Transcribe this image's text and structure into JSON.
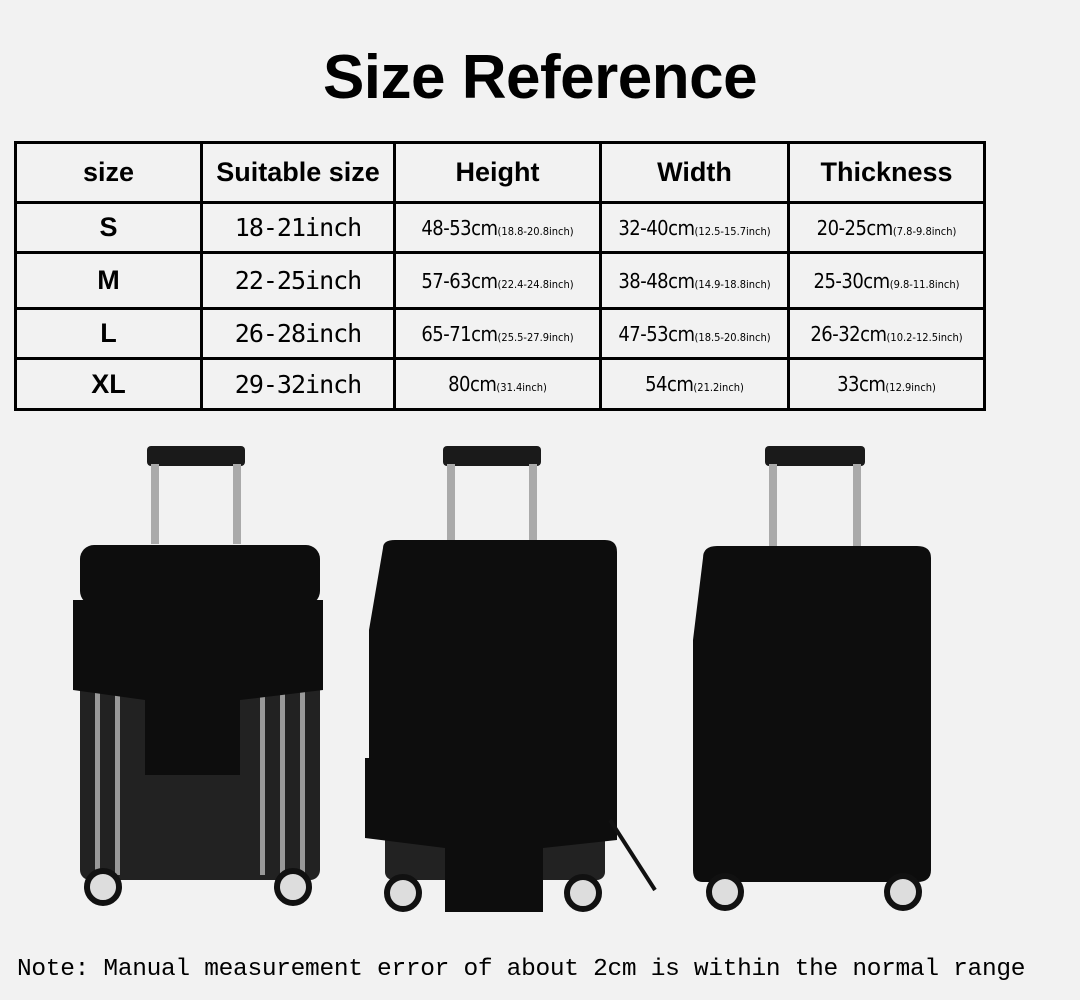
{
  "title": "Size Reference",
  "table": {
    "headers": [
      "size",
      "Suitable size",
      "Height",
      "Width",
      "Thickness"
    ],
    "rows": [
      {
        "size": "S",
        "suitable": "18-21inch",
        "height_cm": "48-53cm",
        "height_in": "(18.8-20.8inch)",
        "width_cm": "32-40cm",
        "width_in": "(12.5-15.7inch)",
        "thick_cm": "20-25cm",
        "thick_in": "(7.8-9.8inch)"
      },
      {
        "size": "M",
        "suitable": "22-25inch",
        "height_cm": "57-63cm",
        "height_in": "(22.4-24.8inch)",
        "width_cm": "38-48cm",
        "width_in": "(14.9-18.8inch)",
        "thick_cm": "25-30cm",
        "thick_in": "(9.8-11.8inch)"
      },
      {
        "size": "L",
        "suitable": "26-28inch",
        "height_cm": "65-71cm",
        "height_in": "(25.5-27.9inch)",
        "width_cm": "47-53cm",
        "width_in": "(18.5-20.8inch)",
        "thick_cm": "26-32cm",
        "thick_in": "(10.2-12.5inch)"
      },
      {
        "size": "XL",
        "suitable": "29-32inch",
        "height_cm": "80cm",
        "height_in": "(31.4inch)",
        "width_cm": "54cm",
        "width_in": "(21.2inch)",
        "thick_cm": "33cm",
        "thick_in": "(12.9inch)"
      }
    ]
  },
  "note": "Note: Manual measurement error of about 2cm is within the normal range",
  "colors": {
    "background": "#f2f2f2",
    "cover": "#0d0d0d"
  }
}
